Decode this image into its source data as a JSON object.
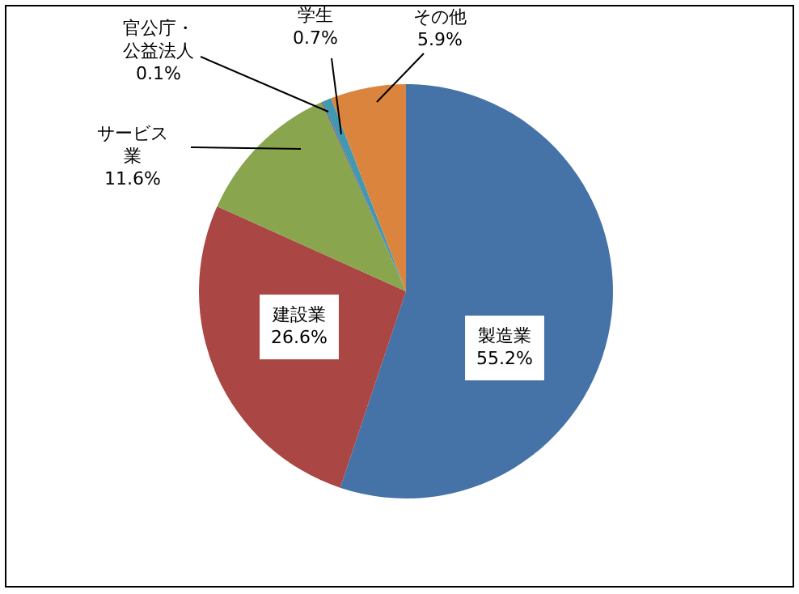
{
  "chart_data": {
    "type": "pie",
    "categories": [
      "製造業",
      "建設業",
      "サービス業",
      "官公庁・公益法人",
      "学生",
      "その他"
    ],
    "values": [
      55.2,
      26.6,
      11.6,
      0.1,
      0.7,
      5.9
    ],
    "value_labels": [
      "55.2%",
      "26.6%",
      "11.6%",
      "0.1%",
      "0.7%",
      "5.9%"
    ],
    "colors": [
      "#4572a7",
      "#aa4643",
      "#89a54e",
      "#71588f",
      "#4198af",
      "#db843d"
    ],
    "legend": false
  }
}
